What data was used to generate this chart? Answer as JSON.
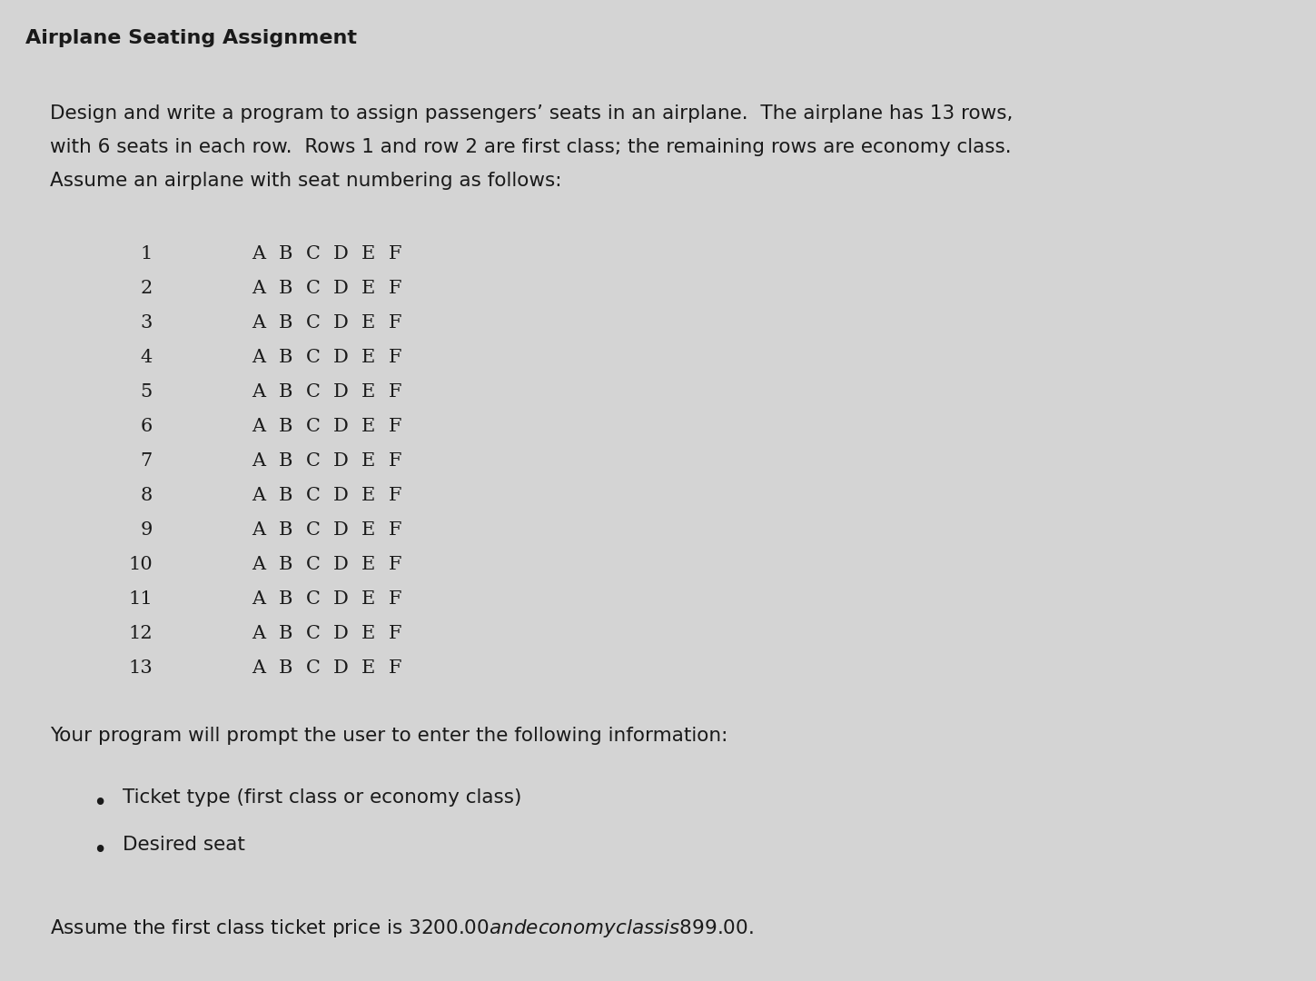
{
  "title": "Airplane Seating Assignment",
  "title_fontsize": 16,
  "bg_color": "#d4d4d4",
  "text_color": "#1a1a1a",
  "body_line1": "Design and write a program to assign passengers’ seats in an airplane.  The airplane has 13 rows,",
  "body_line2": "with 6 seats in each row.  Rows 1 and row 2 are first class; the remaining rows are economy class.",
  "body_line3": "Assume an airplane with seat numbering as follows:",
  "body_fontsize": 15.5,
  "seat_letters": [
    "A",
    "B",
    "C",
    "D",
    "E",
    "F"
  ],
  "num_rows": 13,
  "seat_fontsize": 15,
  "row_num_fontsize": 15,
  "prompt_text": "Your program will prompt the user to enter the following information:",
  "prompt_fontsize": 15.5,
  "bullet_items": [
    "Ticket type (first class or economy class)",
    "Desired seat"
  ],
  "bullet_fontsize": 15.5,
  "footer_text": "Assume the first class ticket price is $3200.00 and economy class is $899.00.",
  "footer_fontsize": 15.5
}
